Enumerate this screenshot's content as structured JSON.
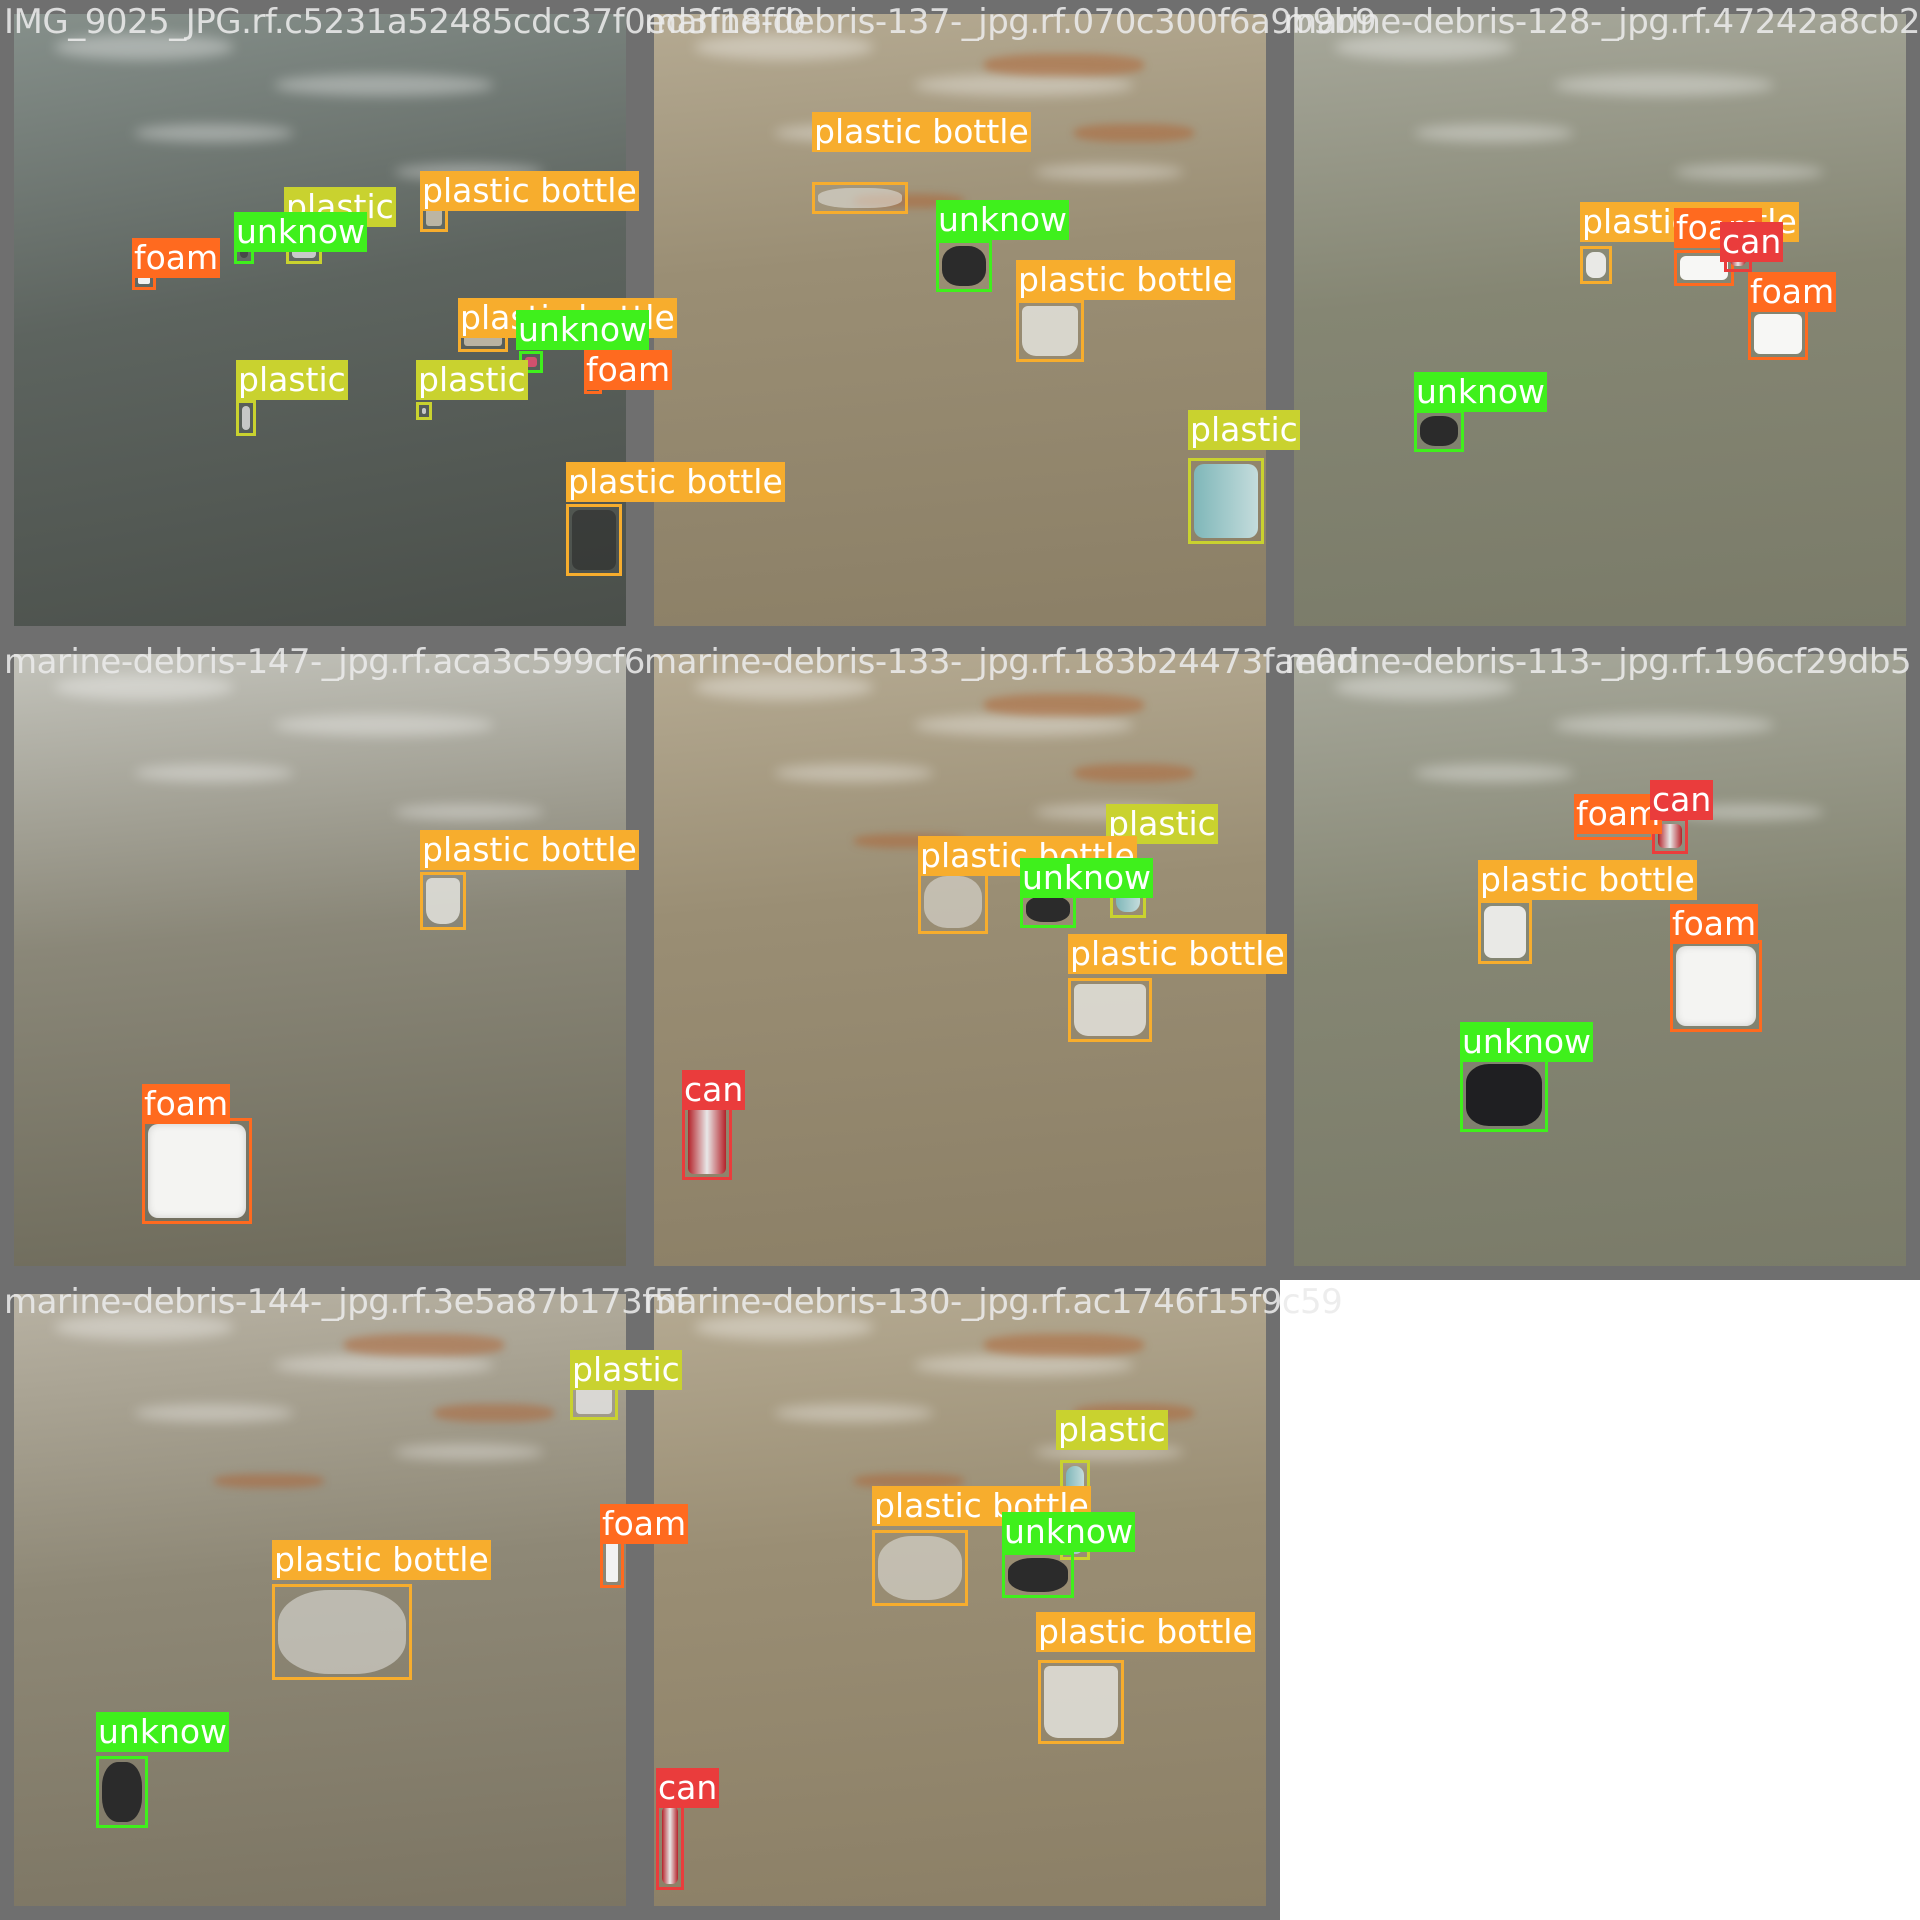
{
  "class_colors": {
    "plastic bottle": "#f7ad2d",
    "unknow": "#3ff01c",
    "foam": "#ff6a1f",
    "plastic": "#c9d22f",
    "can": "#ea3c3c"
  },
  "cells": [
    {
      "title": "IMG_9025_JPG.rf.c5231a52485cdc37f0ed3f18ff0",
      "water": "dark-grey",
      "detections": [
        {
          "label": "plastic",
          "obj": "clear-fragment"
        },
        {
          "label": "plastic bottle",
          "obj": "bottle-cap"
        },
        {
          "label": "unknow",
          "obj": "small-debris"
        },
        {
          "label": "foam",
          "obj": "foam-chip"
        },
        {
          "label": "plastic bottle",
          "obj": "bottle-cap"
        },
        {
          "label": "unknow",
          "obj": "pink-debris"
        },
        {
          "label": "foam",
          "obj": "foam-chip"
        },
        {
          "label": "plastic",
          "obj": "clear-fragment"
        },
        {
          "label": "plastic",
          "obj": "clear-fragment"
        },
        {
          "label": "plastic bottle",
          "obj": "dark-bottle"
        }
      ]
    },
    {
      "title": "marine-debris-137-_jpg.rf.070c300f6a9b9b9",
      "water": "murky",
      "detections": [
        {
          "label": "plastic bottle",
          "obj": "crushed-bottle"
        },
        {
          "label": "unknow",
          "obj": "dark-debris"
        },
        {
          "label": "plastic bottle",
          "obj": "clear-cup"
        },
        {
          "label": "plastic",
          "obj": "blue-bottle"
        }
      ]
    },
    {
      "title": "marine-debris-128-_jpg.rf.47242a8cb2",
      "water": "grey-green",
      "detections": [
        {
          "label": "plastic bottle",
          "obj": "white-cup"
        },
        {
          "label": "foam",
          "obj": "foam-block"
        },
        {
          "label": "can",
          "obj": "red-can"
        },
        {
          "label": "foam",
          "obj": "foam-block"
        },
        {
          "label": "unknow",
          "obj": "dark-debris"
        }
      ]
    },
    {
      "title": "marine-debris-147-_jpg.rf.aca3c599cf6",
      "water": "pale",
      "detections": [
        {
          "label": "plastic bottle",
          "obj": "clear-cup"
        },
        {
          "label": "foam",
          "obj": "foam-tray"
        }
      ]
    },
    {
      "title": "marine-debris-133-_jpg.rf.183b24473fae0d",
      "water": "murky",
      "detections": [
        {
          "label": "plastic",
          "obj": "blue-bottle"
        },
        {
          "label": "plastic bottle",
          "obj": "crushed-bottle"
        },
        {
          "label": "unknow",
          "obj": "dark-debris"
        },
        {
          "label": "plastic bottle",
          "obj": "clear-cup"
        },
        {
          "label": "can",
          "obj": "red-can"
        }
      ]
    },
    {
      "title": "marine-debris-113-_jpg.rf.196cf29db5",
      "water": "grey-green",
      "detections": [
        {
          "label": "foam",
          "obj": "foam-block"
        },
        {
          "label": "can",
          "obj": "red-can"
        },
        {
          "label": "plastic bottle",
          "obj": "white-cup"
        },
        {
          "label": "foam",
          "obj": "foam-tray"
        },
        {
          "label": "unknow",
          "obj": "mask"
        }
      ]
    },
    {
      "title": "marine-debris-144-_jpg.rf.3e5a87b173f5f",
      "water": "reflective",
      "detections": [
        {
          "label": "plastic",
          "obj": "clear-fragment"
        },
        {
          "label": "foam",
          "obj": "foam-chip"
        },
        {
          "label": "plastic bottle",
          "obj": "crushed-bottle"
        },
        {
          "label": "unknow",
          "obj": "dark-debris"
        }
      ]
    },
    {
      "title": "marine-debris-130-_jpg.rf.ac1746f15f9c59",
      "water": "murky",
      "detections": [
        {
          "label": "plastic",
          "obj": "blue-bottle"
        },
        {
          "label": "plastic bottle",
          "obj": "crushed-bottle"
        },
        {
          "label": "unknow",
          "obj": "dark-debris"
        },
        {
          "label": "plastic bottle",
          "obj": "clear-cup"
        },
        {
          "label": "can",
          "obj": "red-can"
        }
      ]
    }
  ]
}
